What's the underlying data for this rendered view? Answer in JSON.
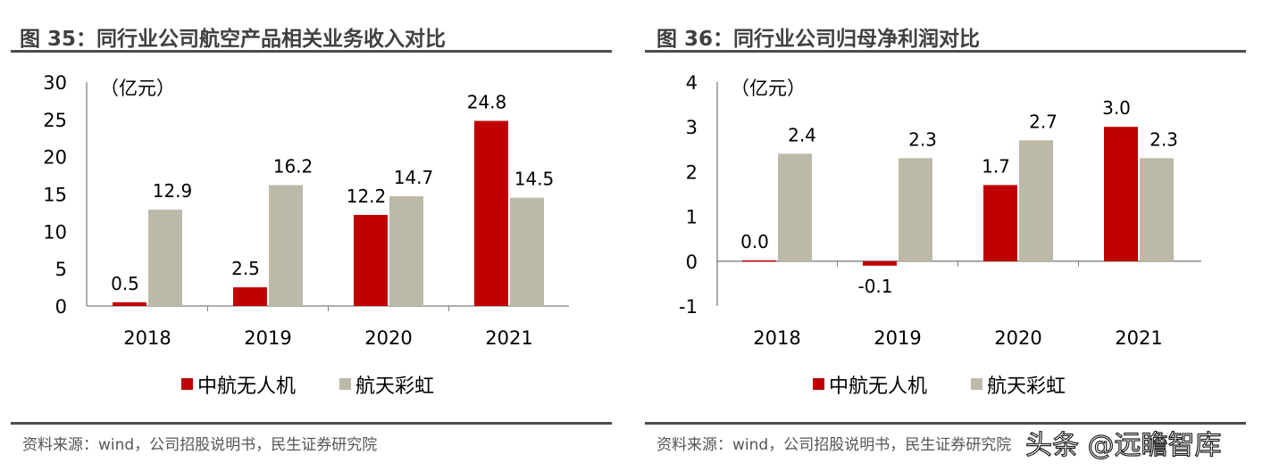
{
  "colors": {
    "zhonghang": "#c00000",
    "caihong": "#bcb9a8",
    "axis": "#7f7f7f"
  },
  "watermark": "头条 @远瞻智库",
  "chart_data": [
    {
      "type": "bar",
      "title": "图 35：同行业公司航空产品相关业务收入对比",
      "unit": "（亿元）",
      "categories": [
        "2018",
        "2019",
        "2020",
        "2021"
      ],
      "series": [
        {
          "name": "中航无人机",
          "values": [
            0.5,
            2.5,
            12.2,
            24.8
          ],
          "labels": [
            "0.5",
            "2.5",
            "12.2",
            "24.8"
          ]
        },
        {
          "name": "航天彩虹",
          "values": [
            12.9,
            16.2,
            14.7,
            14.5
          ],
          "labels": [
            "12.9",
            "16.2",
            "14.7",
            "14.5"
          ]
        }
      ],
      "ylim": [
        0,
        30
      ],
      "yticks": [
        0,
        5,
        10,
        15,
        20,
        25,
        30
      ],
      "legend": "bottom",
      "grid": false,
      "source": "资料来源：wind，公司招股说明书，民生证券研究院"
    },
    {
      "type": "bar",
      "title": "图 36：同行业公司归母净利润对比",
      "unit": "（亿元）",
      "categories": [
        "2018",
        "2019",
        "2020",
        "2021"
      ],
      "series": [
        {
          "name": "中航无人机",
          "values": [
            0.02,
            -0.1,
            1.7,
            3.0
          ],
          "labels": [
            "0.0",
            "-0.1",
            "1.7",
            "3.0"
          ]
        },
        {
          "name": "航天彩虹",
          "values": [
            2.4,
            2.3,
            2.7,
            2.3
          ],
          "labels": [
            "2.4",
            "2.3",
            "2.7",
            "2.3"
          ]
        }
      ],
      "ylim": [
        -1,
        4
      ],
      "yticks": [
        -1,
        0,
        1,
        2,
        3,
        4
      ],
      "legend": "bottom",
      "grid": false,
      "source": "资料来源：wind，公司招股说明书，民生证券研究院"
    }
  ]
}
